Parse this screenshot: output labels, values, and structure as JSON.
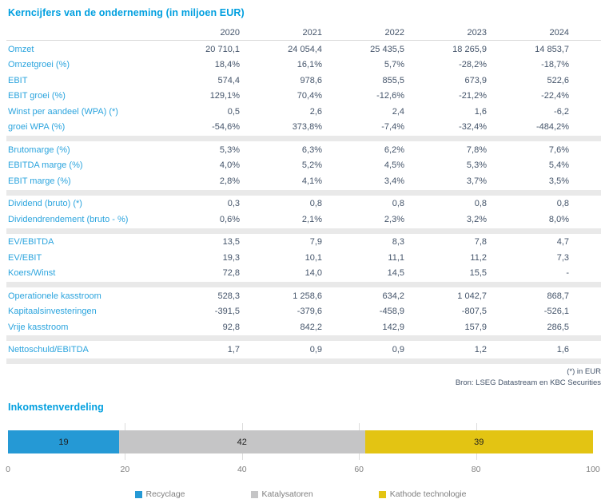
{
  "table": {
    "title": "Kerncijfers van de onderneming (in miljoen EUR)",
    "years": [
      "2020",
      "2021",
      "2022",
      "2023",
      "2024"
    ],
    "sections": [
      {
        "rows": [
          {
            "label": "Omzet",
            "values": [
              "20 710,1",
              "24 054,4",
              "25 435,5",
              "18 265,9",
              "14 853,7"
            ]
          },
          {
            "label": "Omzetgroei (%)",
            "values": [
              "18,4%",
              "16,1%",
              "5,7%",
              "-28,2%",
              "-18,7%"
            ]
          },
          {
            "label": "EBIT",
            "values": [
              "574,4",
              "978,6",
              "855,5",
              "673,9",
              "522,6"
            ]
          },
          {
            "label": "EBIT groei (%)",
            "values": [
              "129,1%",
              "70,4%",
              "-12,6%",
              "-21,2%",
              "-22,4%"
            ]
          },
          {
            "label": "Winst per aandeel (WPA) (*)",
            "values": [
              "0,5",
              "2,6",
              "2,4",
              "1,6",
              "-6,2"
            ]
          },
          {
            "label": "groei WPA (%)",
            "values": [
              "-54,6%",
              "373,8%",
              "-7,4%",
              "-32,4%",
              "-484,2%"
            ]
          }
        ]
      },
      {
        "rows": [
          {
            "label": "Brutomarge (%)",
            "values": [
              "5,3%",
              "6,3%",
              "6,2%",
              "7,8%",
              "7,6%"
            ]
          },
          {
            "label": "EBITDA marge (%)",
            "values": [
              "4,0%",
              "5,2%",
              "4,5%",
              "5,3%",
              "5,4%"
            ]
          },
          {
            "label": "EBIT marge (%)",
            "values": [
              "2,8%",
              "4,1%",
              "3,4%",
              "3,7%",
              "3,5%"
            ]
          }
        ]
      },
      {
        "rows": [
          {
            "label": "Dividend (bruto) (*)",
            "values": [
              "0,3",
              "0,8",
              "0,8",
              "0,8",
              "0,8"
            ]
          },
          {
            "label": "Dividendrendement (bruto - %)",
            "values": [
              "0,6%",
              "2,1%",
              "2,3%",
              "3,2%",
              "8,0%"
            ]
          }
        ]
      },
      {
        "rows": [
          {
            "label": "EV/EBITDA",
            "values": [
              "13,5",
              "7,9",
              "8,3",
              "7,8",
              "4,7"
            ]
          },
          {
            "label": "EV/EBIT",
            "values": [
              "19,3",
              "10,1",
              "11,1",
              "11,2",
              "7,3"
            ]
          },
          {
            "label": "Koers/Winst",
            "values": [
              "72,8",
              "14,0",
              "14,5",
              "15,5",
              "-"
            ]
          }
        ]
      },
      {
        "rows": [
          {
            "label": "Operationele kasstroom",
            "values": [
              "528,3",
              "1 258,6",
              "634,2",
              "1 042,7",
              "868,7"
            ]
          },
          {
            "label": "Kapitaalsinvesteringen",
            "values": [
              "-391,5",
              "-379,6",
              "-458,9",
              "-807,5",
              "-526,1"
            ]
          },
          {
            "label": "Vrije kasstroom",
            "values": [
              "92,8",
              "842,2",
              "142,9",
              "157,9",
              "286,5"
            ]
          }
        ]
      },
      {
        "rows": [
          {
            "label": "Nettoschuld/EBITDA",
            "values": [
              "1,7",
              "0,9",
              "0,9",
              "1,2",
              "1,6"
            ]
          }
        ]
      }
    ],
    "footnote": "(*) in EUR",
    "source": "Bron: LSEG Datastream en KBC Securities"
  },
  "chart_data": {
    "type": "bar",
    "orientation": "horizontal-stacked",
    "title": "Inkomstenverdeling",
    "series": [
      {
        "name": "Recyclage",
        "value": 19,
        "color": "#2599D5"
      },
      {
        "name": "Katalysatoren",
        "value": 42,
        "color": "#C5C5C6"
      },
      {
        "name": "Kathode technologie",
        "value": 39,
        "color": "#E3C413"
      }
    ],
    "xlim": [
      0,
      100
    ],
    "xticks": [
      0,
      20,
      40,
      60,
      80,
      100
    ],
    "grid": true,
    "legend_position": "bottom",
    "colors": {
      "accent_blue": "#009FDF",
      "label_blue": "#2BA4DE",
      "value_slate": "#44546A",
      "divider_gray": "#E9E9E9"
    }
  }
}
